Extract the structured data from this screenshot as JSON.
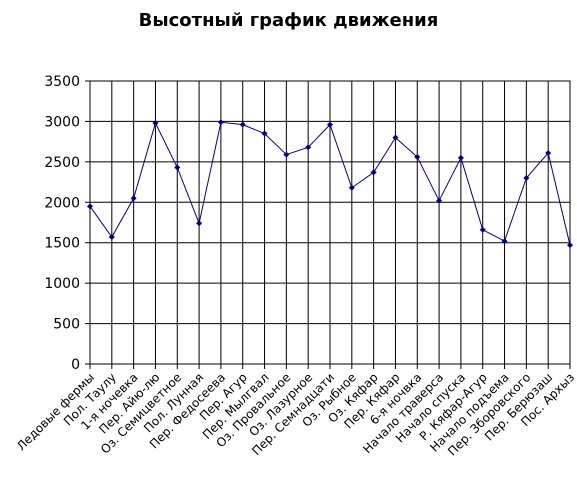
{
  "chart_data": {
    "type": "line",
    "title": "Высотный график движения",
    "xlabel": "",
    "ylabel": "",
    "ylim": [
      0,
      3500
    ],
    "yticks": [
      0,
      500,
      1000,
      1500,
      2000,
      2500,
      3000,
      3500
    ],
    "grid": true,
    "legend": "none",
    "colors": {
      "line": "#000080",
      "marker": "#000080",
      "grid": "#000000"
    },
    "categories": [
      "Ледовые фермы",
      "Пол. Таулу",
      "1-я ночевка",
      "Пер. Айю-лю",
      "Оз. Семицветное",
      "Пол. Лунная",
      "Пер. Федосеева",
      "Пер. Агур",
      "Пер. Мылгвал",
      "Оз. Провальное",
      "Оз. Лазурное",
      "Пер. Семнадцати",
      "Оз. Рыбное",
      "Оз. Кяфар",
      "Пер. Кяфар",
      "6-я ночвка",
      "Начало траверса",
      "Начало спуска",
      "Р. Кяфар-Агур",
      "Начало подъема",
      "Пер. Зборовского",
      "Пер. Берюзаш",
      "Пос. Архыз"
    ],
    "series": [
      {
        "values": [
          1950,
          1570,
          2050,
          2980,
          2430,
          1740,
          2990,
          2960,
          2850,
          2590,
          2680,
          2960,
          2180,
          2370,
          2800,
          2560,
          2020,
          2550,
          1660,
          1520,
          2300,
          2610,
          1470
        ]
      }
    ]
  }
}
